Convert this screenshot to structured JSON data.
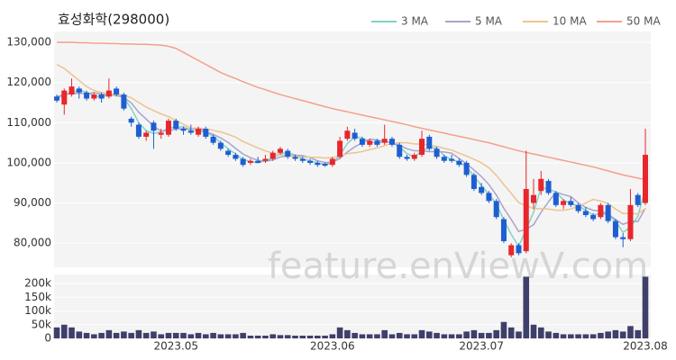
{
  "chart_data": {
    "type": "candlestick",
    "title": "효성화학(298000)",
    "watermark": "feature.enViewV.com",
    "categories": [
      null,
      null,
      null,
      null,
      null,
      null,
      null,
      null,
      null,
      null,
      null,
      null,
      null,
      null,
      null,
      null,
      "2023.05",
      null,
      null,
      null,
      null,
      null,
      null,
      null,
      null,
      null,
      null,
      null,
      null,
      null,
      null,
      null,
      null,
      null,
      null,
      null,
      null,
      "2023.06",
      null,
      null,
      null,
      null,
      null,
      null,
      null,
      null,
      null,
      null,
      null,
      null,
      null,
      null,
      null,
      null,
      null,
      null,
      null,
      "2023.07",
      null,
      null,
      null,
      null,
      null,
      null,
      null,
      null,
      null,
      null,
      null,
      null,
      null,
      null,
      null,
      null,
      null,
      null,
      null,
      null,
      null,
      "2023.08"
    ],
    "open": [
      116500,
      114500,
      117000,
      118500,
      117500,
      116000,
      117000,
      116500,
      118500,
      117000,
      111000,
      109500,
      106500,
      110000,
      107000,
      107000,
      110500,
      108500,
      108000,
      107000,
      108500,
      106500,
      105000,
      103000,
      102000,
      101000,
      100000,
      100500,
      100500,
      101000,
      102500,
      103000,
      101500,
      101000,
      100500,
      100000,
      99800,
      99500,
      101500,
      106000,
      107500,
      106000,
      104500,
      105500,
      105000,
      106000,
      104500,
      101500,
      101000,
      102000,
      106500,
      103500,
      101500,
      101000,
      100500,
      100000,
      97000,
      94000,
      92500,
      90500,
      86000,
      77000,
      79500,
      78000,
      90000,
      93000,
      95500,
      92500,
      89500,
      90500,
      89500,
      88000,
      87000,
      86500,
      89500,
      85500,
      81500,
      81000,
      92000,
      90000
    ],
    "high": [
      117000,
      118500,
      121000,
      119000,
      118000,
      117500,
      117500,
      121000,
      119000,
      117500,
      111500,
      110000,
      108000,
      110500,
      108500,
      111000,
      111000,
      109000,
      109500,
      109000,
      109000,
      107000,
      105500,
      103500,
      102500,
      101500,
      101000,
      101500,
      102000,
      103000,
      104000,
      103500,
      102000,
      101500,
      101000,
      100500,
      100000,
      101500,
      106500,
      109000,
      108500,
      106500,
      106000,
      106000,
      109500,
      106500,
      105000,
      102000,
      102500,
      108000,
      107000,
      104000,
      102000,
      102000,
      101000,
      100500,
      97500,
      95000,
      93000,
      91000,
      86500,
      80000,
      80000,
      103000,
      96000,
      98000,
      96000,
      93000,
      91000,
      91500,
      90000,
      89000,
      87500,
      90000,
      90000,
      86000,
      82500,
      93500,
      92500,
      108500
    ],
    "low": [
      115000,
      112000,
      116500,
      116000,
      115500,
      115500,
      115000,
      116000,
      116500,
      113000,
      109000,
      106000,
      105500,
      103500,
      106000,
      106500,
      108000,
      107000,
      107000,
      106500,
      106000,
      104500,
      103000,
      101500,
      100500,
      99000,
      99500,
      100000,
      100000,
      100500,
      102000,
      101000,
      100500,
      100000,
      99500,
      99000,
      99000,
      99000,
      101000,
      105500,
      105500,
      104000,
      104000,
      104000,
      104500,
      104000,
      101000,
      100500,
      100500,
      101500,
      103000,
      101000,
      100000,
      100000,
      99000,
      96500,
      93000,
      92000,
      90000,
      86000,
      80000,
      76500,
      77000,
      77500,
      88500,
      92000,
      92000,
      89000,
      88500,
      89000,
      87500,
      86500,
      85500,
      86000,
      85000,
      81000,
      79000,
      80500,
      89000,
      89500
    ],
    "close": [
      115500,
      118000,
      119000,
      117500,
      116000,
      117000,
      116000,
      118000,
      117000,
      113500,
      110000,
      106500,
      107500,
      108000,
      107500,
      110500,
      108500,
      108000,
      107500,
      108500,
      106500,
      105000,
      103500,
      102000,
      101000,
      99500,
      100500,
      100000,
      101000,
      102500,
      103500,
      101500,
      101000,
      100500,
      100000,
      99500,
      99300,
      101000,
      105500,
      108000,
      106000,
      104500,
      105500,
      104500,
      106000,
      104500,
      101500,
      101000,
      102000,
      106000,
      103500,
      101500,
      100500,
      100500,
      99500,
      97000,
      93500,
      92500,
      90500,
      86500,
      80500,
      79500,
      77500,
      93500,
      92000,
      96000,
      92500,
      89500,
      90500,
      89500,
      88000,
      87000,
      86000,
      89500,
      85500,
      81500,
      81000,
      89500,
      89500,
      102000
    ],
    "volume": [
      40000,
      50000,
      40000,
      25000,
      20000,
      15000,
      20000,
      30000,
      20000,
      25000,
      20000,
      30000,
      20000,
      25000,
      15000,
      20000,
      20000,
      20000,
      15000,
      20000,
      15000,
      20000,
      15000,
      15000,
      15000,
      20000,
      10000,
      10000,
      10000,
      15000,
      12000,
      12000,
      10000,
      10000,
      10000,
      10000,
      10000,
      15000,
      40000,
      30000,
      20000,
      15000,
      15000,
      15000,
      30000,
      15000,
      20000,
      15000,
      15000,
      30000,
      25000,
      20000,
      15000,
      15000,
      15000,
      25000,
      30000,
      20000,
      20000,
      30000,
      60000,
      40000,
      25000,
      225000,
      50000,
      40000,
      25000,
      20000,
      15000,
      15000,
      15000,
      15000,
      15000,
      20000,
      25000,
      30000,
      25000,
      45000,
      30000,
      225000
    ],
    "up_color": "#e8262b",
    "down_color": "#1d5fd1",
    "volume_color": "#3f3f6b",
    "series": [
      {
        "name": "3 MA",
        "color": "#7fd3c8",
        "values": [
          116000,
          117000,
          117500,
          118200,
          117500,
          116800,
          116300,
          117000,
          117000,
          116200,
          113500,
          110000,
          108000,
          107300,
          107700,
          108700,
          108800,
          109000,
          108000,
          108000,
          107500,
          106700,
          105000,
          103500,
          102200,
          100800,
          100300,
          100000,
          100500,
          101200,
          102300,
          102500,
          102000,
          101000,
          100500,
          100000,
          99600,
          99900,
          101900,
          104800,
          106500,
          106200,
          105300,
          104800,
          105300,
          105000,
          104000,
          102300,
          101500,
          103000,
          103800,
          103700,
          101800,
          100800,
          100200,
          99000,
          96700,
          94300,
          92200,
          89800,
          85800,
          82200,
          79200,
          83500,
          87700,
          93800,
          93500,
          92700,
          90800,
          89800,
          89300,
          88200,
          87000,
          87500,
          87000,
          85500,
          82700,
          84000,
          86700,
          93700
        ]
      },
      {
        "name": "5 MA",
        "color": "#a9a3cf",
        "values": [
          116500,
          117000,
          117300,
          117300,
          117200,
          117500,
          117100,
          116900,
          116800,
          116300,
          114900,
          112600,
          110900,
          109100,
          107900,
          108000,
          108400,
          108500,
          108400,
          108600,
          107800,
          107100,
          106200,
          105100,
          103600,
          102200,
          101300,
          100600,
          100400,
          100700,
          101500,
          101700,
          101900,
          101800,
          101300,
          100500,
          100100,
          100100,
          101100,
          102700,
          104000,
          105000,
          105900,
          105700,
          105300,
          105000,
          104400,
          103500,
          103000,
          103000,
          102800,
          102800,
          102700,
          102400,
          101100,
          99800,
          98200,
          96600,
          94600,
          92000,
          88700,
          85900,
          82900,
          83500,
          84600,
          87700,
          90300,
          92700,
          92100,
          91600,
          90000,
          88900,
          88200,
          88000,
          87200,
          85900,
          84700,
          85400,
          85400,
          88700
        ]
      },
      {
        "name": "10 MA",
        "color": "#ecc48f",
        "values": [
          124500,
          123500,
          122000,
          120500,
          119000,
          118000,
          117500,
          117200,
          117000,
          116900,
          116200,
          115000,
          113900,
          113000,
          112200,
          111500,
          110500,
          109600,
          108600,
          108700,
          108400,
          108100,
          107700,
          107100,
          106400,
          105300,
          104500,
          103700,
          103000,
          102400,
          102100,
          101800,
          101600,
          101500,
          101400,
          101400,
          101200,
          101300,
          101700,
          102300,
          102500,
          102800,
          103300,
          103700,
          104300,
          104800,
          105000,
          105000,
          104700,
          104700,
          104400,
          104100,
          103600,
          103200,
          102400,
          101700,
          100900,
          100000,
          98800,
          96900,
          94600,
          92400,
          90100,
          89400,
          88600,
          88600,
          88500,
          88200,
          88200,
          88500,
          89200,
          90000,
          90900,
          90500,
          89900,
          88500,
          87400,
          87400,
          87300,
          88600
        ]
      },
      {
        "name": "50 MA",
        "color": "#f4a08a",
        "values": [
          130000,
          130000,
          130000,
          129900,
          129900,
          129800,
          129800,
          129700,
          129700,
          129600,
          129600,
          129500,
          129500,
          129400,
          129300,
          129000,
          128500,
          127500,
          126500,
          125500,
          124500,
          123500,
          122500,
          121700,
          121000,
          120200,
          119500,
          118800,
          118200,
          117600,
          117000,
          116500,
          116000,
          115500,
          115000,
          114500,
          114000,
          113500,
          113100,
          112700,
          112300,
          111900,
          111500,
          111100,
          110700,
          110300,
          109900,
          109500,
          109000,
          108600,
          108200,
          107800,
          107400,
          107000,
          106600,
          106200,
          105800,
          105400,
          105000,
          104500,
          104000,
          103500,
          103000,
          102600,
          102200,
          101800,
          101400,
          101000,
          100600,
          100200,
          99800,
          99400,
          99000,
          98500,
          98000,
          97500,
          97000,
          96600,
          96200,
          95800
        ]
      }
    ],
    "ylim": [
      74000,
      132700
    ],
    "yticks": [
      {
        "value": 80000,
        "label": "80,000"
      },
      {
        "value": 90000,
        "label": "90,000"
      },
      {
        "value": 100000,
        "label": "100,000"
      },
      {
        "value": 110000,
        "label": "110,000"
      },
      {
        "value": 120000,
        "label": "120,000"
      },
      {
        "value": 130000,
        "label": "130,000"
      }
    ],
    "volume_ylim": [
      0,
      233000
    ],
    "volume_yticks": [
      0,
      {
        "value": 50000,
        "label": "50k"
      },
      {
        "value": 100000,
        "label": "100k"
      },
      {
        "value": 150000,
        "label": "150k"
      },
      {
        "value": 200000,
        "label": "200k"
      }
    ],
    "grid": true
  }
}
